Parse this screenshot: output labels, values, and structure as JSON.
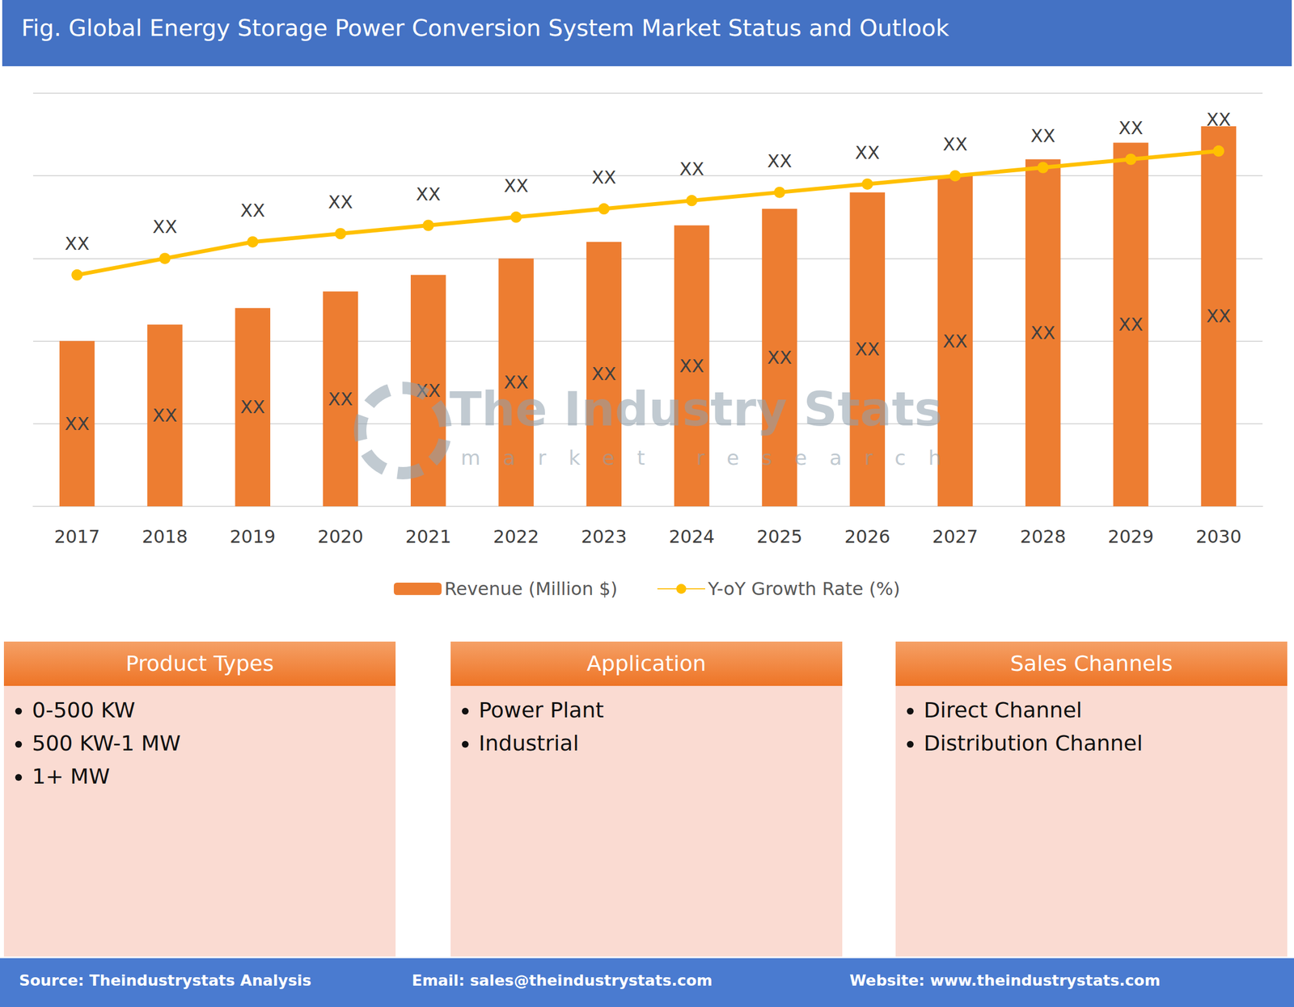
{
  "chart_data": {
    "type": "bar",
    "title": "Fig. Global Energy Storage Power Conversion System Market Status and Outlook",
    "categories": [
      "2017",
      "2018",
      "2019",
      "2020",
      "2021",
      "2022",
      "2023",
      "2024",
      "2025",
      "2026",
      "2027",
      "2028",
      "2029",
      "2030"
    ],
    "series": [
      {
        "name": "Revenue (Million $)",
        "type": "bar",
        "color": "#ED7D31",
        "values": [
          2.0,
          2.2,
          2.4,
          2.6,
          2.8,
          3.0,
          3.2,
          3.4,
          3.6,
          3.8,
          4.0,
          4.2,
          4.4,
          4.6
        ],
        "value_labels": [
          "XX",
          "XX",
          "XX",
          "XX",
          "XX",
          "XX",
          "XX",
          "XX",
          "XX",
          "XX",
          "XX",
          "XX",
          "XX",
          "XX"
        ]
      },
      {
        "name": "Y-oY Growth Rate (%)",
        "type": "line",
        "color": "#FFC000",
        "marker": "circle",
        "values": [
          2.8,
          3.0,
          3.2,
          3.3,
          3.4,
          3.5,
          3.6,
          3.7,
          3.8,
          3.9,
          4.0,
          4.1,
          4.2,
          4.3
        ],
        "value_labels": [
          "XX",
          "XX",
          "XX",
          "XX",
          "XX",
          "XX",
          "XX",
          "XX",
          "XX",
          "XX",
          "XX",
          "XX",
          "XX",
          "XX"
        ]
      }
    ],
    "ylim": [
      0,
      5
    ],
    "yticks": [
      0,
      1,
      2,
      3,
      4,
      5
    ],
    "grid": true,
    "legend": "bottom",
    "data_labels": true,
    "tick_labels": "x"
  },
  "watermark": {
    "title": "The Industry Stats",
    "subtitle": "market research"
  },
  "panels": [
    {
      "title": "Product Types",
      "items": [
        "0-500 KW",
        "500 KW-1 MW",
        "1+ MW"
      ]
    },
    {
      "title": "Application",
      "items": [
        "Power Plant",
        "Industrial"
      ]
    },
    {
      "title": "Sales Channels",
      "items": [
        "Direct Channel",
        "Distribution Channel"
      ]
    }
  ],
  "footer": [
    "Source: Theindustrystats Analysis",
    "Email: sales@theindustrystats.com",
    "Website: www.theindustrystats.com"
  ]
}
